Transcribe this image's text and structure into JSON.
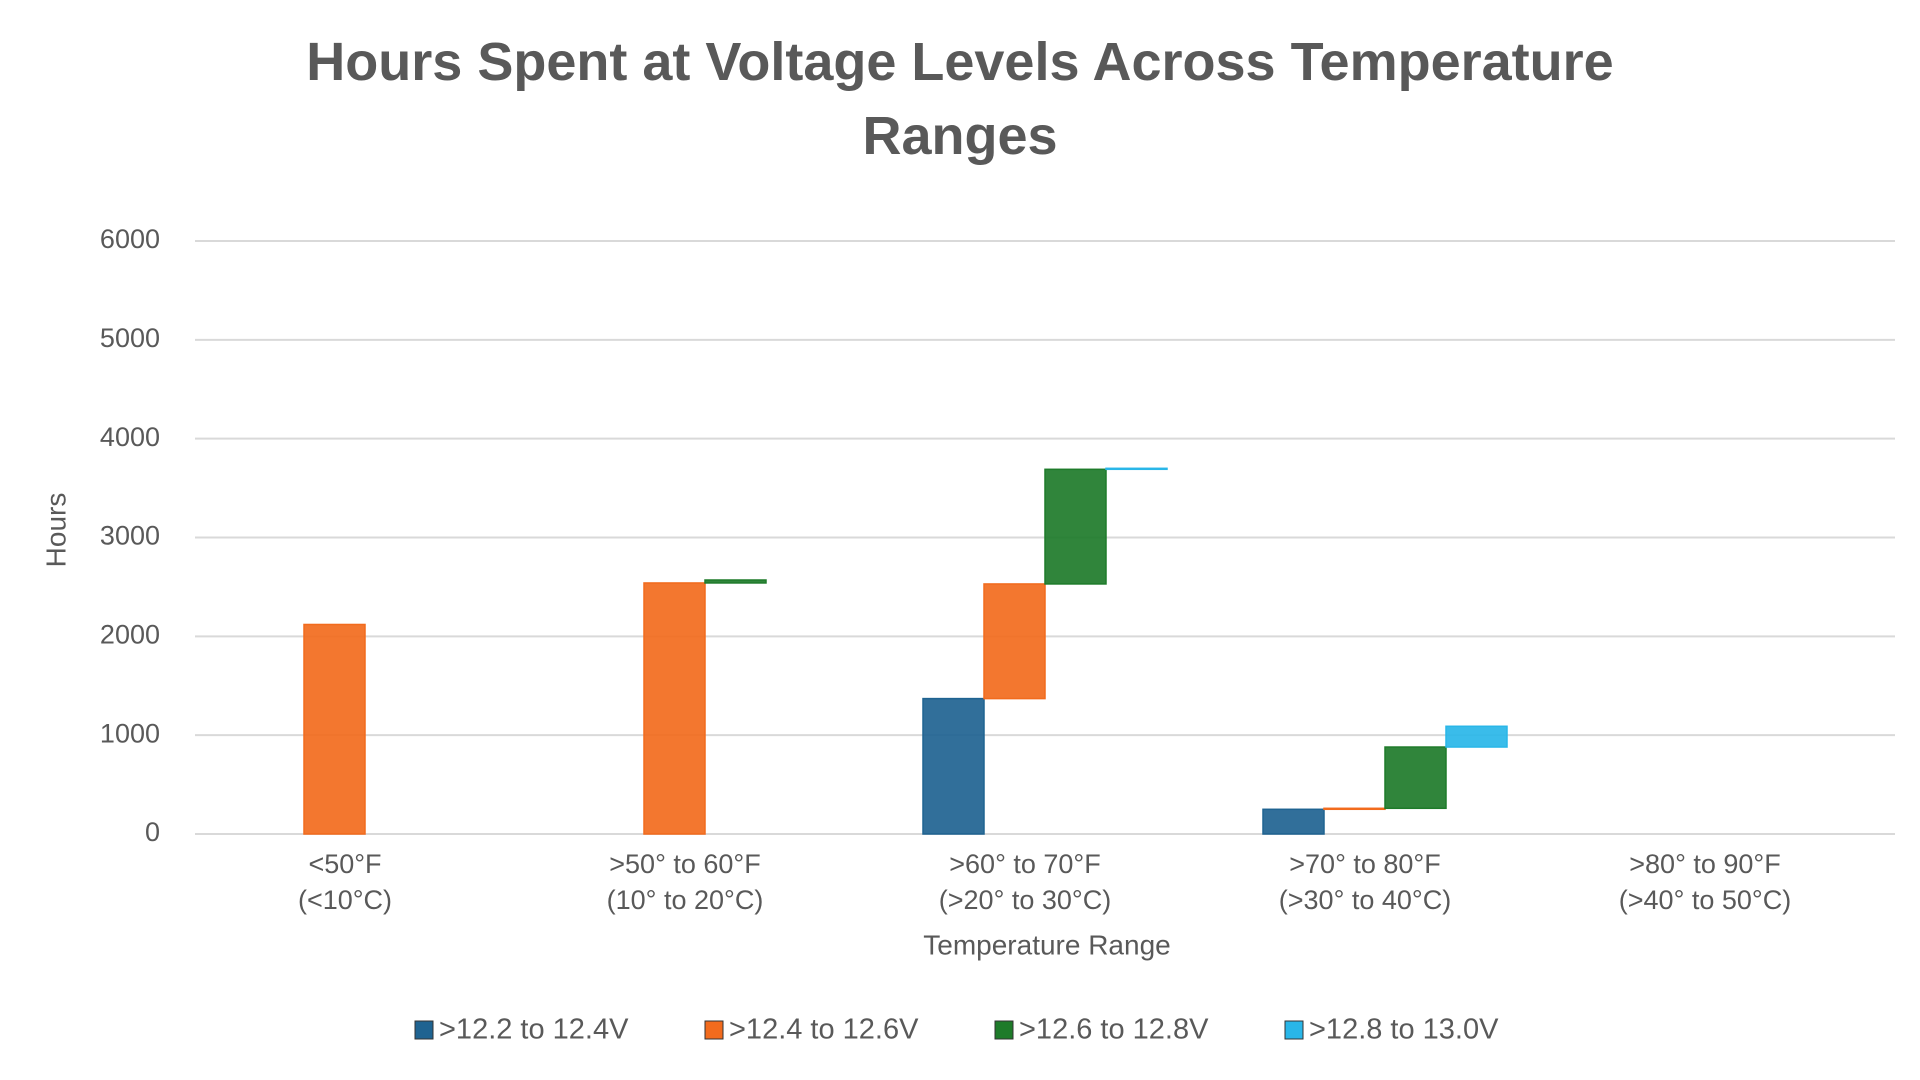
{
  "chart_data": {
    "type": "bar",
    "stacked": true,
    "title": "Hours Spent at Voltage Levels Across Temperature Ranges",
    "x_label": "Temperature Range",
    "y_label": "Hours",
    "categories": [
      [
        "<50°F",
        "(<10°C)"
      ],
      [
        ">50° to 60°F",
        "(10° to 20°C)"
      ],
      [
        ">60° to 70°F",
        "(>20° to 30°C)"
      ],
      [
        ">70° to 80°F",
        "(>30° to 40°C)"
      ],
      [
        ">80° to 90°F",
        "(>40° to 50°C)"
      ]
    ],
    "series": [
      {
        "name": ">12.2 to 12.4V",
        "color": "#1f6391",
        "values": [
          0,
          0,
          1370,
          250,
          0
        ]
      },
      {
        "name": ">12.4 to 12.6V",
        "color": "#f26b1d",
        "values": [
          2120,
          2540,
          1160,
          10,
          0
        ]
      },
      {
        "name": ">12.6 to 12.8V",
        "color": "#1e7b2a",
        "values": [
          0,
          30,
          1160,
          620,
          0
        ]
      },
      {
        "name": ">12.8 to 13.0V",
        "color": "#29b6e8",
        "values": [
          0,
          0,
          10,
          210,
          0
        ]
      }
    ],
    "ylim": [
      0,
      6000
    ],
    "yticks": [
      0,
      1000,
      2000,
      3000,
      4000,
      5000,
      6000
    ],
    "grid": true,
    "legend": "bottom"
  }
}
